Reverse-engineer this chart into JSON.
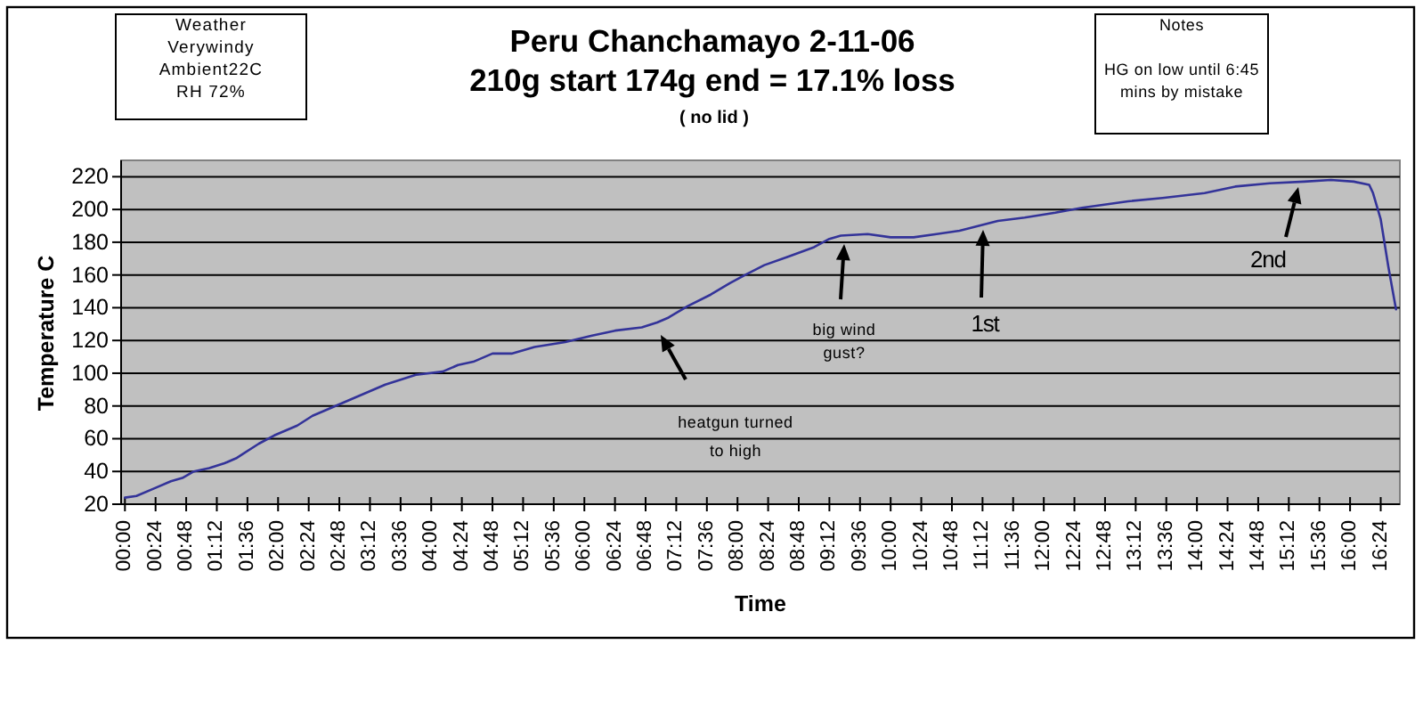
{
  "chart_data": {
    "type": "line",
    "title": "Peru Chanchamayo 2-11-06\n210g start 174g end = 17.1% loss",
    "subtitle": "( no lid )",
    "xlabel": "Time",
    "ylabel": "Temperature C",
    "x": [
      0,
      0.15,
      0.4,
      0.6,
      0.75,
      0.9,
      1.1,
      1.3,
      1.45,
      1.75,
      1.95,
      2.25,
      2.45,
      2.6,
      3.0,
      3.4,
      3.8,
      4.15,
      4.35,
      4.55,
      4.8,
      5.05,
      5.35,
      5.75,
      6.1,
      6.4,
      6.75,
      6.95,
      7.1,
      7.35,
      7.65,
      7.9,
      8.1,
      8.35,
      8.65,
      9.0,
      9.2,
      9.35,
      9.7,
      10.0,
      10.3,
      10.6,
      10.9,
      11.15,
      11.4,
      11.75,
      12.15,
      12.5,
      13.1,
      13.55,
      14.1,
      14.5,
      14.95,
      15.4,
      15.75,
      16.05,
      16.25,
      16.3,
      16.4,
      16.5,
      16.6
    ],
    "series": [
      {
        "color": "#333399",
        "values": [
          24,
          25,
          30,
          34,
          36,
          40,
          42,
          45,
          48,
          57,
          62,
          68,
          74,
          77,
          85,
          93,
          99,
          101,
          105,
          107,
          112,
          112,
          116,
          119,
          123,
          126,
          128,
          131,
          134,
          141,
          148,
          155,
          160,
          166,
          171,
          177,
          182,
          184,
          185,
          183,
          183,
          185,
          187,
          190,
          193,
          195,
          198,
          201,
          205,
          207,
          210,
          214,
          216,
          217,
          218,
          217,
          215,
          210,
          194,
          165,
          139
        ]
      }
    ],
    "xlim": [
      -0.05,
      16.65
    ],
    "xticks": [
      {
        "value": 0,
        "label": "00:00"
      },
      {
        "value": 0.4,
        "label": "00:24"
      },
      {
        "value": 0.8,
        "label": "00:48"
      },
      {
        "value": 1.2,
        "label": "01:12"
      },
      {
        "value": 1.6,
        "label": "01:36"
      },
      {
        "value": 2,
        "label": "02:00"
      },
      {
        "value": 2.4,
        "label": "02:24"
      },
      {
        "value": 2.8,
        "label": "02:48"
      },
      {
        "value": 3.2,
        "label": "03:12"
      },
      {
        "value": 3.6,
        "label": "03:36"
      },
      {
        "value": 4,
        "label": "04:00"
      },
      {
        "value": 4.4,
        "label": "04:24"
      },
      {
        "value": 4.8,
        "label": "04:48"
      },
      {
        "value": 5.2,
        "label": "05:12"
      },
      {
        "value": 5.6,
        "label": "05:36"
      },
      {
        "value": 6,
        "label": "06:00"
      },
      {
        "value": 6.4,
        "label": "06:24"
      },
      {
        "value": 6.8,
        "label": "06:48"
      },
      {
        "value": 7.2,
        "label": "07:12"
      },
      {
        "value": 7.6,
        "label": "07:36"
      },
      {
        "value": 8,
        "label": "08:00"
      },
      {
        "value": 8.4,
        "label": "08:24"
      },
      {
        "value": 8.8,
        "label": "08:48"
      },
      {
        "value": 9.2,
        "label": "09:12"
      },
      {
        "value": 9.6,
        "label": "09:36"
      },
      {
        "value": 10,
        "label": "10:00"
      },
      {
        "value": 10.4,
        "label": "10:24"
      },
      {
        "value": 10.8,
        "label": "10:48"
      },
      {
        "value": 11.2,
        "label": "11:12"
      },
      {
        "value": 11.6,
        "label": "11:36"
      },
      {
        "value": 12,
        "label": "12:00"
      },
      {
        "value": 12.4,
        "label": "12:24"
      },
      {
        "value": 12.8,
        "label": "12:48"
      },
      {
        "value": 13.2,
        "label": "13:12"
      },
      {
        "value": 13.6,
        "label": "13:36"
      },
      {
        "value": 14,
        "label": "14:00"
      },
      {
        "value": 14.4,
        "label": "14:24"
      },
      {
        "value": 14.8,
        "label": "14:48"
      },
      {
        "value": 15.2,
        "label": "15:12"
      },
      {
        "value": 15.6,
        "label": "15:36"
      },
      {
        "value": 16,
        "label": "16:00"
      },
      {
        "value": 16.4,
        "label": "16:24"
      }
    ],
    "ylim": [
      20,
      230
    ],
    "yticks": [
      20,
      40,
      60,
      80,
      100,
      120,
      140,
      160,
      180,
      200,
      220
    ],
    "grid": "y",
    "annotations": [
      "Weather\nVerywindy\nAmbient22C\nRH 72%",
      "Notes\n\nHG on low until 6:45\nmins by mistake",
      "heatgun turned\nto high",
      "big wind\ngust?",
      "1st",
      "2nd"
    ]
  }
}
